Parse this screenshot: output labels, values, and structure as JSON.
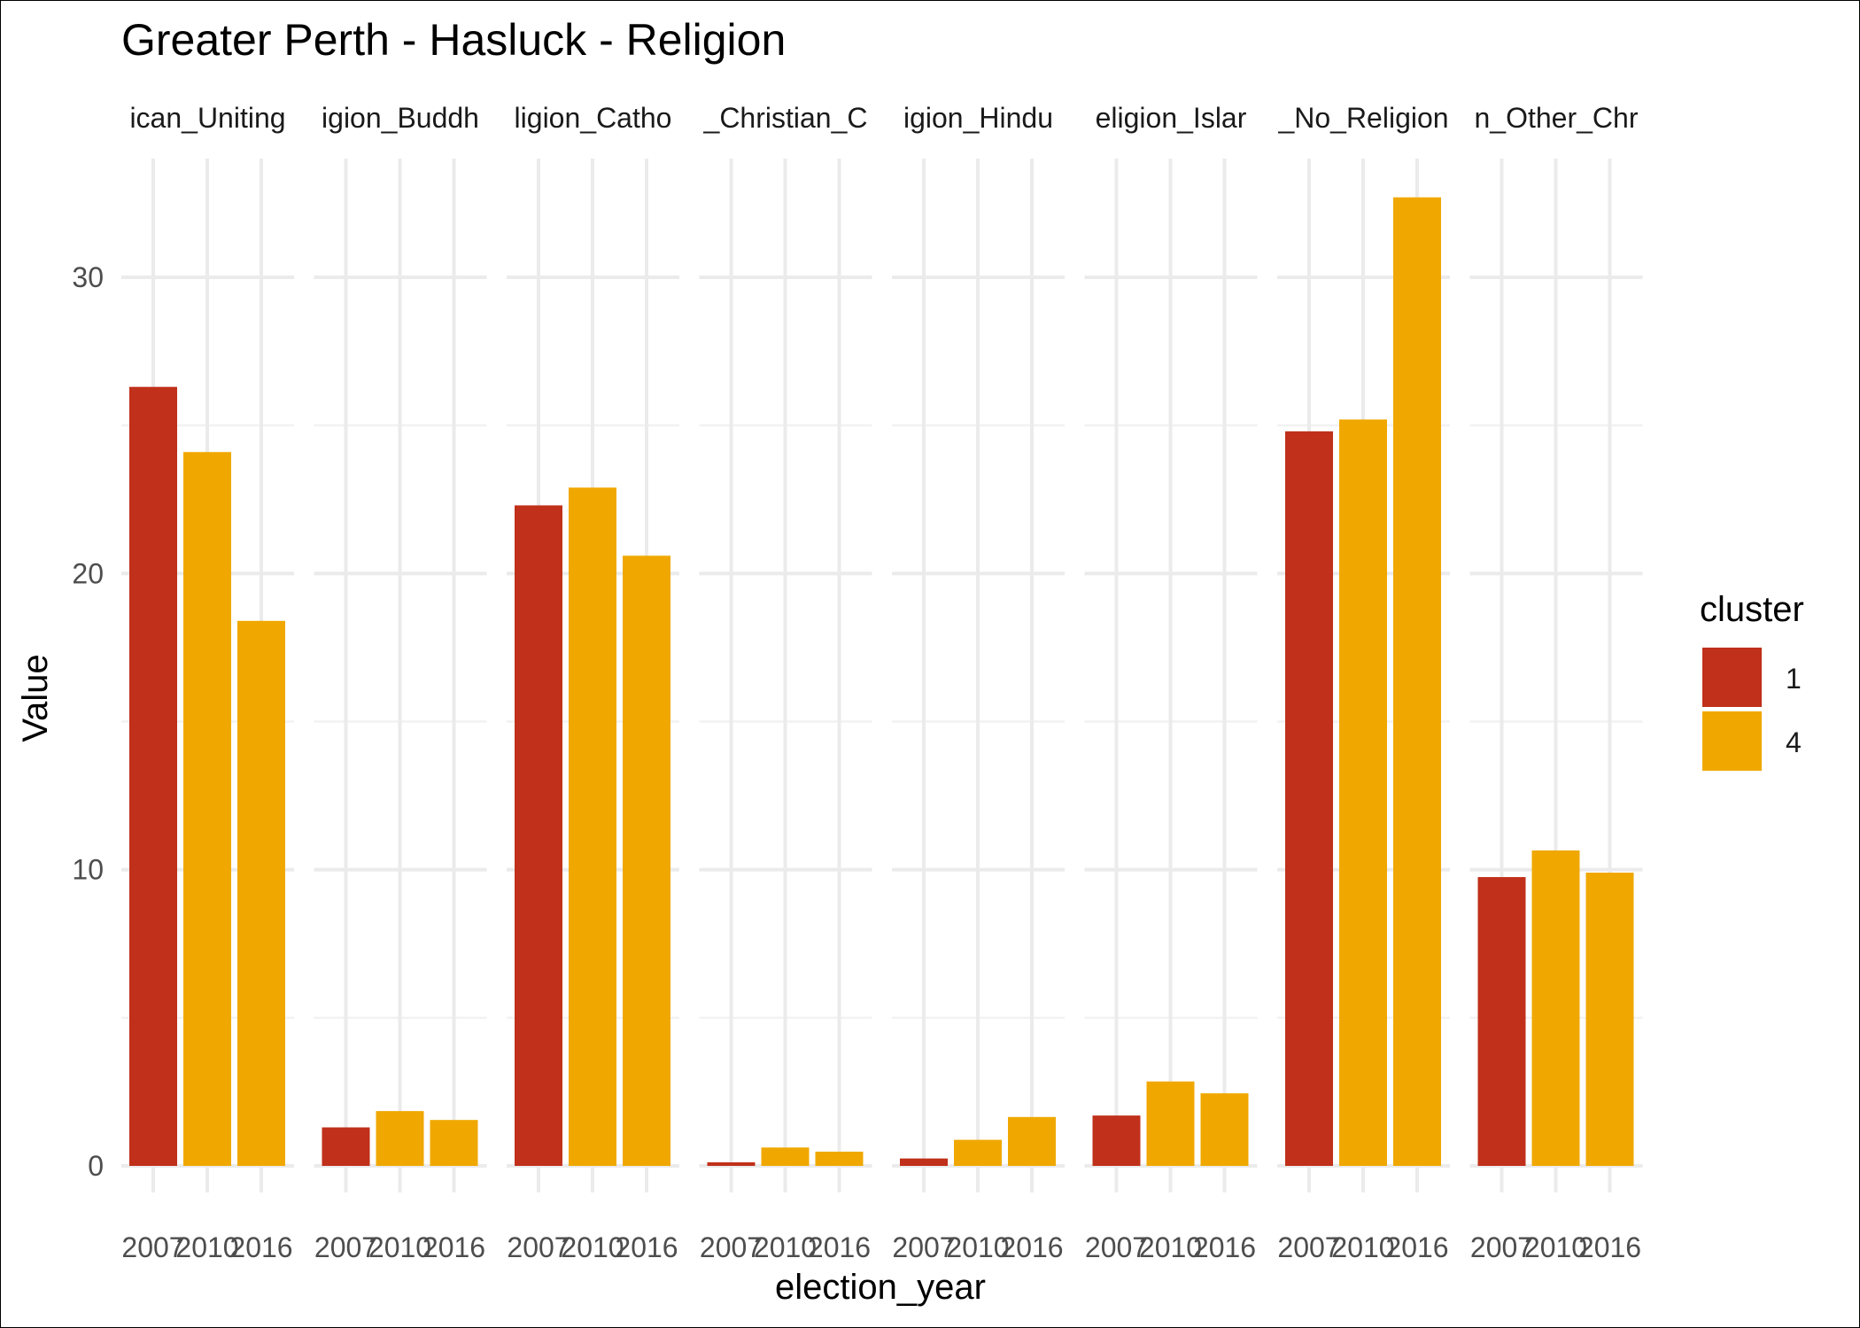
{
  "chart_data": {
    "type": "bar",
    "title": "Greater Perth - Hasluck - Religion",
    "xlabel": "election_year",
    "ylabel": "Value",
    "ylim": [
      0,
      34
    ],
    "y_ticks": [
      0,
      10,
      20,
      30
    ],
    "grid": true,
    "legend": {
      "title": "cluster",
      "placement": "right",
      "entries": [
        {
          "label": "1",
          "color": "#C0301A"
        },
        {
          "label": "4",
          "color": "#F0A800"
        }
      ]
    },
    "x_categories": [
      "2007",
      "2010",
      "2016"
    ],
    "facets": [
      {
        "label": "ican_Uniting",
        "bars": [
          {
            "x": "2007",
            "value": 26.3,
            "cluster": "1"
          },
          {
            "x": "2010",
            "value": 24.1,
            "cluster": "4"
          },
          {
            "x": "2016",
            "value": 18.4,
            "cluster": "4"
          }
        ]
      },
      {
        "label": "igion_Buddh",
        "bars": [
          {
            "x": "2007",
            "value": 1.3,
            "cluster": "1"
          },
          {
            "x": "2010",
            "value": 1.85,
            "cluster": "4"
          },
          {
            "x": "2016",
            "value": 1.55,
            "cluster": "4"
          }
        ]
      },
      {
        "label": "ligion_Catho",
        "bars": [
          {
            "x": "2007",
            "value": 22.3,
            "cluster": "1"
          },
          {
            "x": "2010",
            "value": 22.9,
            "cluster": "4"
          },
          {
            "x": "2016",
            "value": 20.6,
            "cluster": "4"
          }
        ]
      },
      {
        "label": "_Christian_C",
        "bars": [
          {
            "x": "2007",
            "value": 0.12,
            "cluster": "1"
          },
          {
            "x": "2010",
            "value": 0.62,
            "cluster": "4"
          },
          {
            "x": "2016",
            "value": 0.48,
            "cluster": "4"
          }
        ]
      },
      {
        "label": "igion_Hindu",
        "bars": [
          {
            "x": "2007",
            "value": 0.25,
            "cluster": "1"
          },
          {
            "x": "2010",
            "value": 0.88,
            "cluster": "4"
          },
          {
            "x": "2016",
            "value": 1.65,
            "cluster": "4"
          }
        ]
      },
      {
        "label": "eligion_Islar",
        "bars": [
          {
            "x": "2007",
            "value": 1.7,
            "cluster": "1"
          },
          {
            "x": "2010",
            "value": 2.85,
            "cluster": "4"
          },
          {
            "x": "2016",
            "value": 2.45,
            "cluster": "4"
          }
        ]
      },
      {
        "label": "_No_Religion",
        "bars": [
          {
            "x": "2007",
            "value": 24.8,
            "cluster": "1"
          },
          {
            "x": "2010",
            "value": 25.2,
            "cluster": "4"
          },
          {
            "x": "2016",
            "value": 32.7,
            "cluster": "4"
          }
        ]
      },
      {
        "label": "n_Other_Chr",
        "bars": [
          {
            "x": "2007",
            "value": 9.75,
            "cluster": "1"
          },
          {
            "x": "2010",
            "value": 10.65,
            "cluster": "4"
          },
          {
            "x": "2016",
            "value": 9.9,
            "cluster": "4"
          }
        ]
      }
    ]
  }
}
